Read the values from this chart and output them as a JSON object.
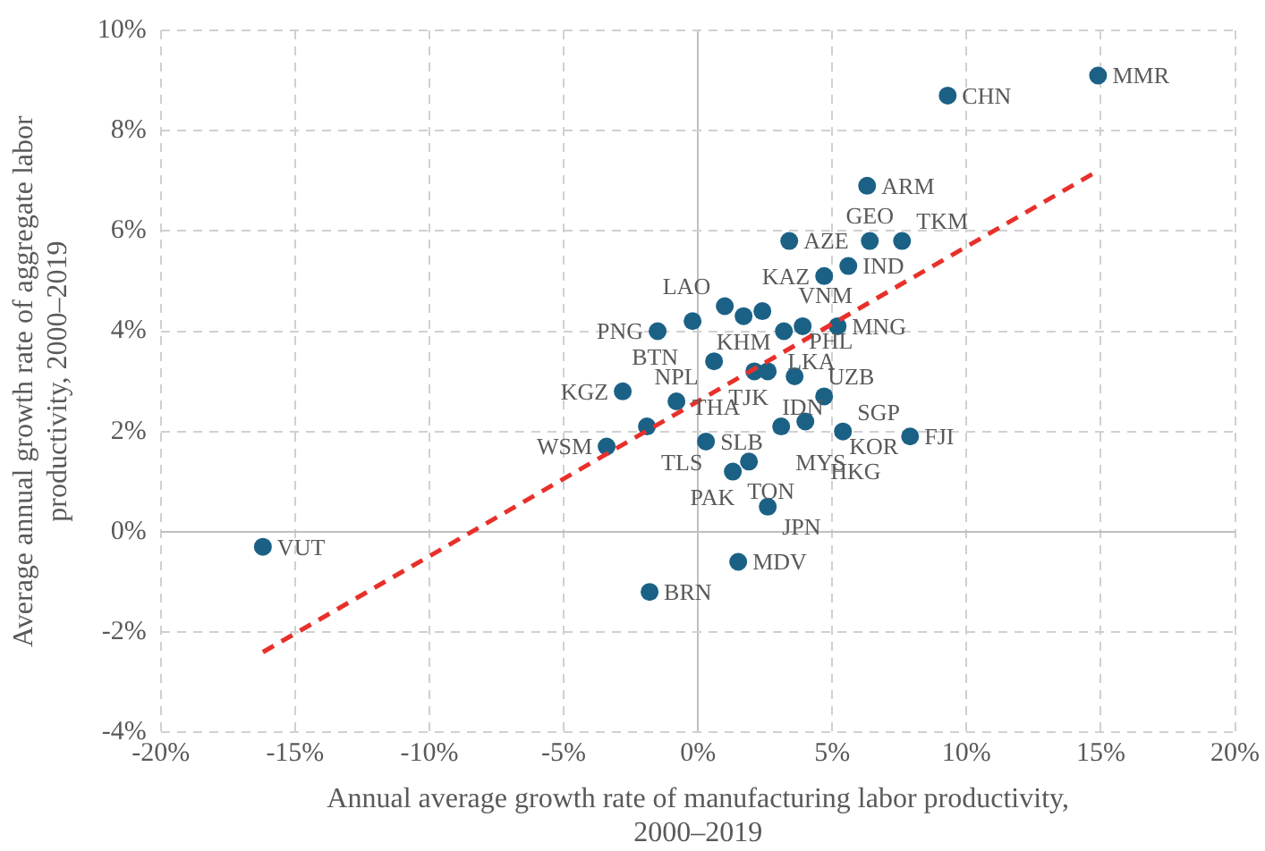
{
  "chart_data": {
    "type": "scatter",
    "xlabel": "Annual average growth rate of manufacturing labor productivity,\n2000–2019",
    "ylabel": "Average annual growth rate of aggregate labor\nproductivity, 2000–2019",
    "xlim": [
      -20,
      20
    ],
    "xticks": [
      {
        "value": -20,
        "label": "-20%"
      },
      {
        "value": -15,
        "label": "-15%"
      },
      {
        "value": -10,
        "label": "-10%"
      },
      {
        "value": -5,
        "label": "-5%"
      },
      {
        "value": 0,
        "label": "0%"
      },
      {
        "value": 5,
        "label": "5%"
      },
      {
        "value": 10,
        "label": "10%"
      },
      {
        "value": 15,
        "label": "15%"
      },
      {
        "value": 20,
        "label": "20%"
      }
    ],
    "ylim": [
      -4,
      10
    ],
    "yticks": [
      {
        "value": -4,
        "label": "-4%"
      },
      {
        "value": -2,
        "label": "-2%"
      },
      {
        "value": 0,
        "label": "0%"
      },
      {
        "value": 2,
        "label": "2%"
      },
      {
        "value": 4,
        "label": "4%"
      },
      {
        "value": 6,
        "label": "6%"
      },
      {
        "value": 8,
        "label": "8%"
      },
      {
        "value": 10,
        "label": "10%"
      }
    ],
    "grid": true,
    "legend": false,
    "marker": "circle",
    "series": [
      {
        "type": "scatter",
        "color": "#1b6186",
        "x": [
          14.9,
          9.3,
          6.3,
          3.4,
          6.4,
          7.6,
          5.6,
          4.7,
          1.0,
          2.4,
          -0.2,
          -1.5,
          1.7,
          3.2,
          3.9,
          5.2,
          0.6,
          2.1,
          2.6,
          3.6,
          4.7,
          -2.8,
          -0.8,
          -1.9,
          -3.4,
          0.3,
          3.1,
          4.0,
          5.4,
          7.9,
          1.9,
          1.3,
          2.6,
          1.5,
          -1.8,
          -16.2
        ],
        "values": [
          9.1,
          8.7,
          6.9,
          5.8,
          5.8,
          5.8,
          5.3,
          5.1,
          4.5,
          4.4,
          4.2,
          4.0,
          4.3,
          4.0,
          4.1,
          4.1,
          3.4,
          3.2,
          3.2,
          3.1,
          2.7,
          2.8,
          2.6,
          2.1,
          1.7,
          1.8,
          2.1,
          2.2,
          2.0,
          1.9,
          1.4,
          1.2,
          0.5,
          -0.6,
          -1.2,
          -0.3
        ]
      },
      {
        "type": "line",
        "color": "#e8302a",
        "line_style": "dashed",
        "marker": "none",
        "x": [
          -16.2,
          14.9
        ],
        "values": [
          -2.4,
          7.2
        ]
      }
    ],
    "annotations": [
      {
        "text": "MMR",
        "x": 14.9,
        "y": 9.1
      },
      {
        "text": "CHN",
        "x": 9.3,
        "y": 8.7
      },
      {
        "text": "ARM",
        "x": 6.3,
        "y": 6.9
      },
      {
        "text": "AZE",
        "x": 3.4,
        "y": 5.8
      },
      {
        "text": "GEO",
        "x": 6.4,
        "y": 5.8
      },
      {
        "text": "TKM",
        "x": 7.6,
        "y": 5.8
      },
      {
        "text": "IND",
        "x": 5.6,
        "y": 5.3
      },
      {
        "text": "KAZ",
        "x": 4.7,
        "y": 5.1
      },
      {
        "text": "LAO",
        "x": 1.0,
        "y": 4.5
      },
      {
        "text": "LKA",
        "x": 2.4,
        "y": 4.4
      },
      {
        "text": "BTN",
        "x": -0.2,
        "y": 4.2
      },
      {
        "text": "PNG",
        "x": -1.5,
        "y": 4.0
      },
      {
        "text": "KHM",
        "x": 1.7,
        "y": 4.3
      },
      {
        "text": "VNM",
        "x": 3.2,
        "y": 4.0
      },
      {
        "text": "UZB",
        "x": 3.9,
        "y": 4.1
      },
      {
        "text": "MNG",
        "x": 5.2,
        "y": 4.1
      },
      {
        "text": "TJK",
        "x": 0.6,
        "y": 3.4
      },
      {
        "text": "THA",
        "x": 2.1,
        "y": 3.2
      },
      {
        "text": "IDN",
        "x": 2.6,
        "y": 3.2
      },
      {
        "text": "PHL",
        "x": 3.6,
        "y": 3.1
      },
      {
        "text": "KOR",
        "x": 4.7,
        "y": 2.7
      },
      {
        "text": "KGZ",
        "x": -2.8,
        "y": 2.8
      },
      {
        "text": "NPL",
        "x": -0.8,
        "y": 2.6
      },
      {
        "text": "TLS",
        "x": -1.9,
        "y": 2.1
      },
      {
        "text": "WSM",
        "x": -3.4,
        "y": 1.7
      },
      {
        "text": "SLB",
        "x": 0.3,
        "y": 1.8
      },
      {
        "text": "MYS",
        "x": 3.1,
        "y": 2.1
      },
      {
        "text": "HKG",
        "x": 4.0,
        "y": 2.2
      },
      {
        "text": "SGP",
        "x": 5.4,
        "y": 2.0
      },
      {
        "text": "FJI",
        "x": 7.9,
        "y": 1.9
      },
      {
        "text": "PAK",
        "x": 1.9,
        "y": 1.4
      },
      {
        "text": "TON",
        "x": 1.3,
        "y": 1.2
      },
      {
        "text": "JPN",
        "x": 2.6,
        "y": 0.5
      },
      {
        "text": "MDV",
        "x": 1.5,
        "y": -0.6
      },
      {
        "text": "BRN",
        "x": -1.8,
        "y": -1.2
      },
      {
        "text": "VUT",
        "x": -16.2,
        "y": -0.3
      }
    ]
  }
}
